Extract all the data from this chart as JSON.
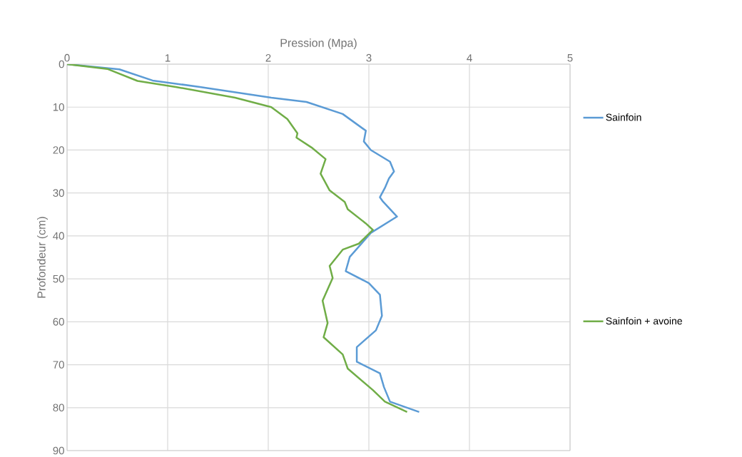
{
  "chart_data": {
    "type": "line",
    "xlabel": "Pression (Mpa)",
    "ylabel": "Profondeur  (cm)",
    "xlim": [
      0,
      5
    ],
    "xticks": [
      0,
      1,
      2,
      3,
      4,
      5
    ],
    "ylim": [
      90,
      0
    ],
    "yticks": [
      0,
      10,
      20,
      30,
      40,
      50,
      60,
      70,
      80,
      90
    ],
    "grid": true,
    "legend": "right",
    "line_style": "solid",
    "marker": "none",
    "series": [
      {
        "name": "Sainfoin",
        "color": "#5b9bd5",
        "x": [
          0,
          0.52,
          0.85,
          1.32,
          2.03,
          2.38,
          2.74,
          2.97,
          2.95,
          3.02,
          3.21,
          3.25,
          3.2,
          3.16,
          3.11,
          3.14,
          3.28,
          3.02,
          2.81,
          2.77,
          3.0,
          3.11,
          3.13,
          3.07,
          2.88,
          2.88,
          3.11,
          3.15,
          3.21,
          3.5
        ],
        "values": [
          0,
          1.2,
          3.8,
          5.3,
          7.8,
          8.8,
          11.6,
          15.5,
          18,
          20,
          22.7,
          25,
          26.6,
          28.8,
          31,
          32,
          35.5,
          39.3,
          44.9,
          48.2,
          51,
          53.7,
          58.6,
          62,
          65.9,
          69.3,
          72,
          75.2,
          78.6,
          81
        ]
      },
      {
        "name": "Sainfoin + avoine",
        "color": "#70ad47",
        "x": [
          0,
          0.4,
          0.7,
          1.08,
          1.67,
          2.03,
          2.19,
          2.29,
          2.28,
          2.43,
          2.57,
          2.52,
          2.61,
          2.76,
          2.79,
          2.97,
          3.04,
          2.9,
          2.74,
          2.61,
          2.64,
          2.54,
          2.59,
          2.55,
          2.74,
          2.79,
          3.04,
          3.16,
          3.38
        ],
        "values": [
          0,
          1.1,
          3.9,
          5.3,
          7.8,
          10,
          12.8,
          16.1,
          17.1,
          19.4,
          22.1,
          25.5,
          29.4,
          32.1,
          33.8,
          37.1,
          38.6,
          41.8,
          43.2,
          47,
          49.8,
          55.1,
          60.3,
          63.6,
          67.6,
          70.9,
          75.9,
          78.6,
          81
        ]
      }
    ]
  }
}
